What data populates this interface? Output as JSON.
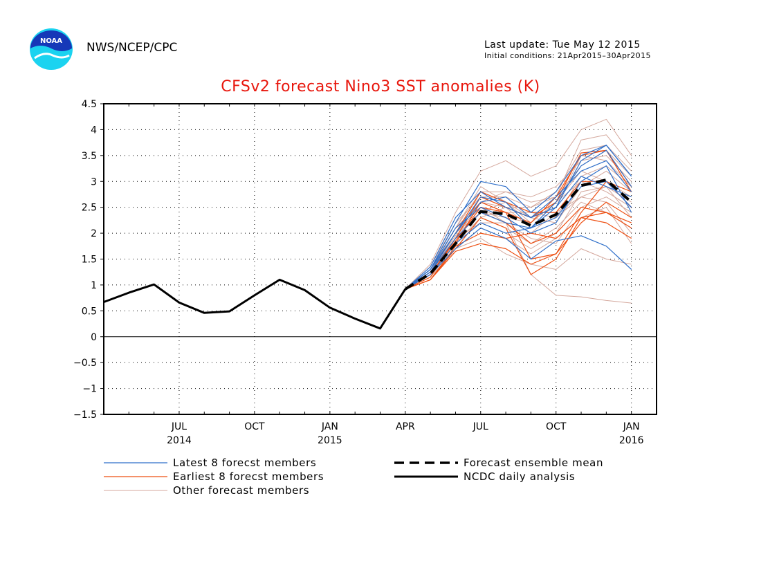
{
  "header": {
    "agency": "NWS/NCEP/CPC",
    "last_update": "Last update: Tue May 12 2015",
    "initial_conditions": "Initial conditions: 21Apr2015–30Apr2015",
    "logo_text": "NOAA"
  },
  "chart_data": {
    "type": "line",
    "title": "CFSv2 forecast Nino3 SST anomalies (K)",
    "ylim": [
      -1.5,
      4.5
    ],
    "yticks": [
      4.5,
      4,
      3.5,
      3,
      2.5,
      2,
      1.5,
      1,
      0.5,
      0,
      -0.5,
      -1,
      -1.5
    ],
    "ytick_labels": [
      "4.5",
      "4",
      "3.5",
      "3",
      "2.5",
      "2",
      "1.5",
      "1",
      "0.5",
      "0",
      "−0.5",
      "−1",
      "−1.5"
    ],
    "xlim_months": [
      "2014-04",
      "2016-02"
    ],
    "xticks": [
      {
        "month": "2014-07",
        "label": "JUL",
        "year": "2014"
      },
      {
        "month": "2014-10",
        "label": "OCT",
        "year": ""
      },
      {
        "month": "2015-01",
        "label": "JAN",
        "year": "2015"
      },
      {
        "month": "2015-04",
        "label": "APR",
        "year": ""
      },
      {
        "month": "2015-07",
        "label": "JUL",
        "year": ""
      },
      {
        "month": "2015-10",
        "label": "OCT",
        "year": ""
      },
      {
        "month": "2016-01",
        "label": "JAN",
        "year": "2016"
      }
    ],
    "grid": true,
    "zero_line": true,
    "legend_position": "bottom",
    "colors": {
      "latest": "#2f6fc9",
      "earliest": "#ee4f12",
      "other": "#d4a79c",
      "observed": "#000000",
      "title": "#e8160c"
    },
    "legend": [
      {
        "key": "latest",
        "label": "Latest 8 forecst members"
      },
      {
        "key": "earliest",
        "label": "Earliest 8 forecst members"
      },
      {
        "key": "other",
        "label": "Other forecast members"
      },
      {
        "key": "mean",
        "label": "Forecast ensemble mean"
      },
      {
        "key": "observed",
        "label": "NCDC daily analysis"
      }
    ],
    "observed": {
      "name": "NCDC daily analysis",
      "x": [
        "2014-04",
        "2014-05",
        "2014-06",
        "2014-07",
        "2014-08",
        "2014-09",
        "2014-10",
        "2014-11",
        "2014-12",
        "2015-01",
        "2015-02",
        "2015-03",
        "2015-04"
      ],
      "y": [
        0.67,
        0.85,
        1.01,
        0.66,
        0.46,
        0.49,
        0.8,
        1.1,
        0.9,
        0.56,
        0.35,
        0.16,
        0.92
      ]
    },
    "forecast_x": [
      "2015-04",
      "2015-05",
      "2015-06",
      "2015-07",
      "2015-08",
      "2015-09",
      "2015-10",
      "2015-11",
      "2015-12",
      "2016-01"
    ],
    "ensemble_mean": {
      "name": "Forecast ensemble mean",
      "y": [
        0.92,
        1.22,
        1.8,
        2.42,
        2.37,
        2.15,
        2.36,
        2.92,
        3.03,
        2.6
      ]
    },
    "latest_members": [
      [
        0.92,
        1.3,
        2.2,
        3.0,
        2.9,
        2.4,
        2.8,
        3.5,
        3.7,
        3.1
      ],
      [
        0.92,
        1.25,
        2.0,
        2.7,
        2.6,
        2.1,
        2.6,
        3.3,
        3.6,
        2.9
      ],
      [
        0.92,
        1.2,
        1.7,
        2.1,
        1.9,
        1.5,
        1.85,
        1.95,
        1.75,
        1.3
      ],
      [
        0.92,
        1.35,
        2.3,
        2.8,
        2.5,
        2.3,
        2.7,
        3.2,
        3.4,
        2.8
      ],
      [
        0.92,
        1.2,
        1.8,
        2.2,
        2.0,
        2.1,
        2.3,
        2.9,
        3.0,
        2.5
      ],
      [
        0.92,
        1.3,
        2.1,
        2.5,
        2.3,
        2.0,
        2.2,
        3.0,
        3.3,
        2.4
      ],
      [
        0.92,
        1.25,
        1.9,
        2.4,
        2.2,
        2.1,
        2.5,
        3.4,
        3.7,
        3.1
      ],
      [
        0.92,
        1.3,
        2.0,
        2.6,
        2.7,
        2.3,
        2.5,
        3.1,
        2.9,
        2.7
      ]
    ],
    "earliest_members": [
      [
        0.92,
        1.1,
        1.7,
        2.3,
        2.1,
        1.2,
        1.5,
        2.3,
        2.4,
        2.1
      ],
      [
        0.92,
        1.2,
        1.8,
        2.6,
        2.4,
        1.5,
        1.6,
        2.2,
        2.6,
        2.3
      ],
      [
        0.92,
        1.15,
        1.9,
        2.7,
        2.5,
        2.3,
        2.6,
        3.55,
        3.6,
        2.9
      ],
      [
        0.92,
        1.2,
        1.9,
        2.4,
        2.2,
        1.8,
        2.0,
        2.5,
        2.4,
        2.2
      ],
      [
        0.92,
        1.1,
        1.75,
        2.0,
        1.9,
        2.0,
        1.9,
        2.3,
        2.2,
        1.9
      ],
      [
        0.92,
        1.25,
        2.0,
        2.8,
        2.6,
        2.4,
        2.4,
        3.0,
        3.0,
        2.5
      ],
      [
        0.92,
        1.2,
        1.85,
        2.5,
        2.4,
        2.2,
        2.7,
        3.5,
        3.6,
        2.8
      ],
      [
        0.92,
        1.1,
        1.65,
        1.8,
        1.7,
        1.4,
        1.6,
        2.4,
        3.0,
        2.8
      ]
    ],
    "other_members": [
      [
        0.92,
        1.4,
        2.4,
        3.2,
        3.4,
        3.1,
        3.3,
        4.0,
        4.2,
        3.5
      ],
      [
        0.92,
        1.3,
        2.0,
        2.5,
        2.2,
        1.2,
        0.8,
        0.77,
        0.7,
        0.65
      ],
      [
        0.92,
        1.2,
        1.7,
        1.9,
        1.6,
        1.4,
        1.3,
        1.7,
        1.5,
        1.4
      ],
      [
        0.92,
        1.25,
        1.9,
        2.6,
        2.8,
        2.6,
        2.7,
        3.8,
        3.9,
        3.3
      ],
      [
        0.92,
        1.3,
        2.1,
        2.9,
        2.6,
        2.2,
        2.6,
        3.2,
        3.0,
        2.7
      ],
      [
        0.92,
        1.2,
        1.8,
        2.3,
        2.1,
        1.8,
        2.1,
        2.6,
        2.4,
        2.1
      ],
      [
        0.92,
        1.35,
        2.2,
        2.7,
        2.7,
        2.5,
        2.8,
        3.6,
        3.7,
        3.2
      ],
      [
        0.92,
        1.15,
        1.8,
        2.2,
        2.0,
        1.7,
        2.0,
        2.8,
        2.9,
        2.3
      ],
      [
        0.92,
        1.3,
        2.0,
        2.6,
        2.4,
        2.4,
        2.3,
        3.1,
        3.3,
        2.9
      ],
      [
        0.92,
        1.25,
        2.1,
        2.8,
        2.8,
        2.7,
        2.9,
        3.4,
        3.5,
        3.0
      ],
      [
        0.92,
        1.2,
        1.85,
        2.5,
        2.3,
        2.0,
        2.4,
        2.7,
        2.6,
        2.0
      ],
      [
        0.92,
        1.3,
        2.0,
        2.4,
        2.6,
        2.3,
        2.2,
        2.9,
        3.2,
        2.8
      ],
      [
        0.92,
        1.2,
        1.9,
        2.2,
        2.2,
        1.9,
        1.8,
        2.5,
        2.7,
        2.4
      ],
      [
        0.92,
        1.25,
        2.0,
        2.7,
        2.5,
        2.5,
        2.7,
        3.3,
        3.6,
        3.1
      ],
      [
        0.92,
        1.15,
        1.7,
        2.1,
        1.9,
        1.6,
        1.9,
        2.3,
        2.5,
        1.8
      ],
      [
        0.92,
        1.3,
        2.1,
        2.6,
        2.5,
        2.3,
        2.5,
        3.5,
        3.4,
        2.9
      ],
      [
        0.92,
        1.25,
        1.95,
        2.4,
        2.3,
        2.2,
        2.6,
        3.0,
        2.8,
        2.5
      ],
      [
        0.92,
        1.2,
        1.8,
        2.3,
        2.5,
        2.1,
        2.3,
        2.7,
        2.9,
        2.6
      ]
    ]
  }
}
